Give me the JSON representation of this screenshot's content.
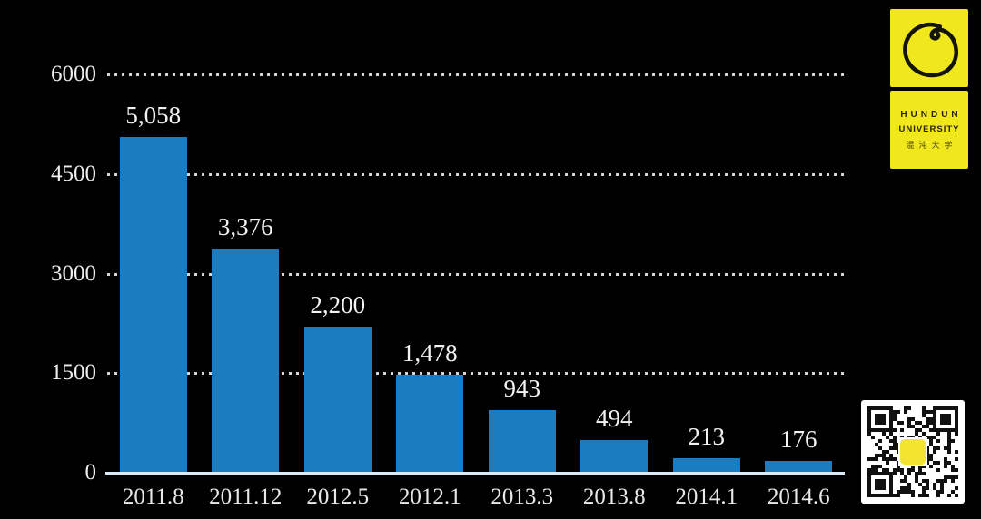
{
  "chart_data": {
    "type": "bar",
    "categories": [
      "2011.8",
      "2011.12",
      "2012.5",
      "2012.1",
      "2013.3",
      "2013.8",
      "2014.1",
      "2014.6"
    ],
    "values": [
      5058,
      3376,
      2200,
      1478,
      943,
      494,
      213,
      176
    ],
    "value_labels": [
      "5,058",
      "3,376",
      "2,200",
      "1,478",
      "943",
      "494",
      "213",
      "176"
    ],
    "title": "",
    "xlabel": "",
    "ylabel": "",
    "ylim": [
      0,
      6000
    ],
    "yticks": [
      0,
      1500,
      3000,
      4500,
      6000
    ],
    "grid": "horizontal-dotted",
    "legend": null,
    "bar_color": "#1b7cc2",
    "background_color": "#000000",
    "text_color": "#ededed"
  },
  "logo": {
    "line1": "HUNDUN",
    "line2": "UNIVERSITY",
    "line3": "混沌大学",
    "color": "#f0e71d",
    "enso_icon": "hand-drawn-circle"
  },
  "qr": {
    "icon": "qr-code",
    "center_color": "#f2e430"
  }
}
